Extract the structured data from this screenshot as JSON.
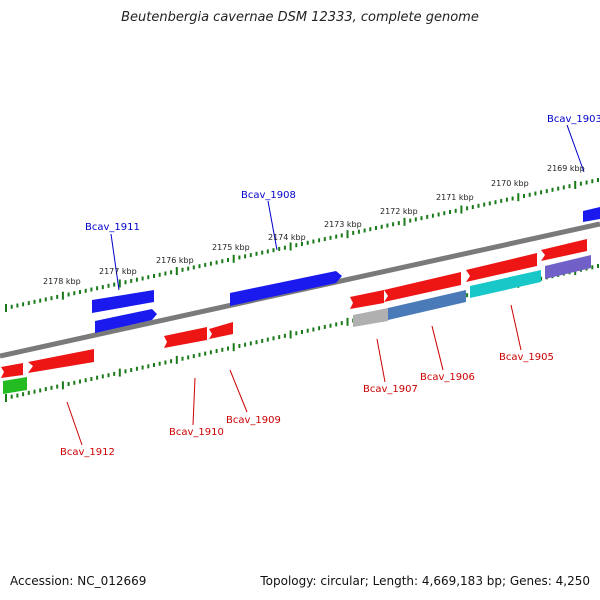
{
  "title": "Beutenbergia cavernae DSM 12333, complete genome",
  "footer": {
    "accession": "Accession: NC_012669",
    "summary": "Topology: circular; Length: 4,669,183 bp; Genes: 4,250"
  },
  "colors": {
    "forward_gene": "#1010ee",
    "reverse_gene": "#ee1010",
    "label_forward": "#0000cc",
    "label_reverse": "#cc0000",
    "tick": "#1a7a1a",
    "backbone": "#808080"
  },
  "scale_labels": [
    "2169 kbp",
    "2170 kbp",
    "2171 kbp",
    "2172 kbp",
    "2173 kbp",
    "2174 kbp",
    "2175 kbp",
    "2176 kbp",
    "2177 kbp",
    "2178 kbp"
  ],
  "gene_labels": {
    "forward": [
      "Bcav_1903",
      "Bcav_1908",
      "Bcav_1911"
    ],
    "reverse": [
      "Bcav_1905",
      "Bcav_1906",
      "Bcav_1907",
      "Bcav_1909",
      "Bcav_1910",
      "Bcav_1912"
    ]
  }
}
